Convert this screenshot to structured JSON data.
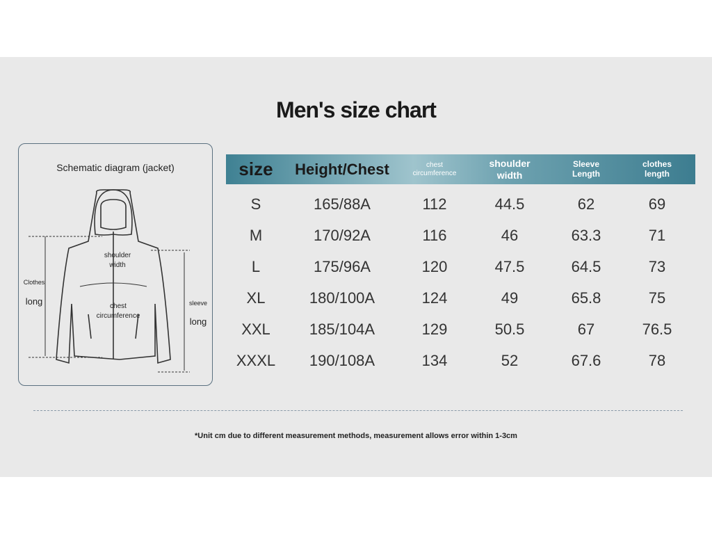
{
  "title": "Men's size chart",
  "diagram": {
    "title": "Schematic diagram (jacket)",
    "shoulder": "shoulder width",
    "clothes": "Clothes",
    "clothes_long": "long",
    "chest": "chest circumference",
    "sleeve": "sleeve",
    "sleeve_long": "long"
  },
  "table": {
    "headers": [
      "size",
      "Height/Chest",
      "chest circumference",
      "shoulder width",
      "Sleeve Length",
      "clothes length"
    ],
    "rows": [
      [
        "S",
        "165/88A",
        112,
        44.5,
        62,
        69
      ],
      [
        "M",
        "170/92A",
        116,
        46,
        63.3,
        71
      ],
      [
        "L",
        "175/96A",
        120,
        47.5,
        64.5,
        73
      ],
      [
        "XL",
        "180/100A",
        124,
        49,
        65.8,
        75
      ],
      [
        "XXL",
        "185/104A",
        129,
        50.5,
        67,
        76.5
      ],
      [
        "XXXL",
        "190/108A",
        134,
        52,
        67.6,
        78
      ]
    ]
  },
  "footnote": "*Unit cm due to different measurement methods, measurement allows error within 1-3cm"
}
